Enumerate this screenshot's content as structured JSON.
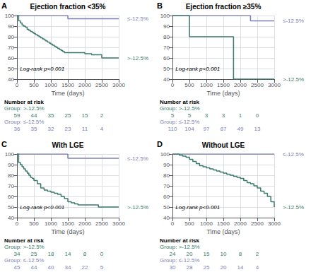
{
  "chart_data": [
    {
      "type": "step",
      "label": "A",
      "title": "Ejection fraction <35%",
      "xlabel": "Time (days)",
      "annotations": [
        "Log-rank p<0.001"
      ],
      "xlim": [
        0,
        3000
      ],
      "xticks": [
        0,
        500,
        1000,
        1500,
        2000,
        2500,
        3000
      ],
      "ylim": [
        40,
        100
      ],
      "yticks": [
        40,
        50,
        60,
        70,
        80,
        90,
        100
      ],
      "grid": true,
      "series": [
        {
          "name": "≤-12.5%",
          "color": "#7b7fb5",
          "x": [
            0,
            50,
            100,
            150,
            200,
            300,
            400,
            500,
            600,
            700,
            800,
            900,
            1000,
            1100,
            1200,
            1300,
            1400,
            1500,
            1600,
            1700,
            1800,
            1900,
            2000,
            2100,
            2200,
            2300,
            2400,
            2500,
            2600,
            2700,
            2800,
            2900,
            3000
          ],
          "values": [
            100,
            100,
            100,
            100,
            100,
            100,
            100,
            100,
            100,
            100,
            100,
            100,
            100,
            100,
            100,
            100,
            100,
            97,
            97,
            97,
            97,
            97,
            97,
            97,
            97,
            97,
            97,
            97,
            97,
            97,
            97,
            97,
            97
          ]
        },
        {
          "name": ">-12.5%",
          "color": "#3a7a6a",
          "x": [
            0,
            50,
            100,
            150,
            200,
            250,
            300,
            350,
            400,
            450,
            500,
            550,
            600,
            650,
            700,
            750,
            800,
            850,
            900,
            950,
            1000,
            1050,
            1100,
            1150,
            1200,
            1250,
            1300,
            1350,
            1400,
            1500,
            1600,
            1700,
            1800,
            1900,
            2000,
            2100,
            2200,
            2300,
            2400,
            2500,
            2600,
            2700,
            2800,
            2900,
            3000
          ],
          "values": [
            100,
            95,
            93,
            91,
            90,
            89,
            87,
            86,
            85,
            84,
            83,
            82,
            81,
            80,
            79,
            78,
            77,
            76,
            75,
            74,
            73,
            72,
            71,
            70,
            69,
            68,
            67,
            66,
            65,
            65,
            65,
            65,
            65,
            65,
            64,
            64,
            63,
            63,
            63,
            60,
            60,
            60,
            60,
            60,
            60
          ]
        }
      ],
      "risk_table": {
        "title": "Number at risk",
        "x": [
          0,
          500,
          1000,
          1500,
          2000,
          2500
        ],
        "rows": [
          {
            "name": "Group: >-12.5%",
            "color": "#3a7a6a",
            "values": [
              59,
              44,
              35,
              25,
              15,
              2
            ]
          },
          {
            "name": "Group: ≤-12.5%",
            "color": "#7b7fb5",
            "values": [
              36,
              35,
              32,
              23,
              11,
              4
            ]
          }
        ]
      }
    },
    {
      "type": "step",
      "label": "B",
      "title": "Ejection fraction ≥35%",
      "xlabel": "Time (days)",
      "annotations": [
        "Log-rank p<0.001"
      ],
      "xlim": [
        0,
        3000
      ],
      "xticks": [
        0,
        500,
        1000,
        1500,
        2000,
        2500,
        3000
      ],
      "ylim": [
        40,
        100
      ],
      "yticks": [
        40,
        50,
        60,
        70,
        80,
        90,
        100
      ],
      "grid": true,
      "series": [
        {
          "name": "≤-12.5%",
          "color": "#7b7fb5",
          "x": [
            0,
            100,
            200,
            300,
            400,
            500,
            600,
            700,
            800,
            900,
            1000,
            1100,
            1200,
            1300,
            1400,
            1500,
            1600,
            1700,
            1800,
            1900,
            2000,
            2100,
            2200,
            2300,
            2400,
            2500,
            2600,
            2700,
            2800,
            2900,
            3000
          ],
          "values": [
            100,
            100,
            100,
            100,
            100,
            100,
            100,
            100,
            100,
            100,
            100,
            100,
            100,
            100,
            100,
            100,
            100,
            100,
            100,
            100,
            100,
            100,
            100,
            95,
            95,
            95,
            95,
            95,
            95,
            95,
            95
          ]
        },
        {
          "name": ">-12.5%",
          "color": "#3a7a6a",
          "x": [
            0,
            100,
            200,
            300,
            400,
            500,
            600,
            700,
            800,
            900,
            1000,
            1100,
            1200,
            1300,
            1400,
            1500,
            1600,
            1700,
            1800,
            1900,
            2000,
            2100,
            2200,
            2300,
            2400,
            2500,
            2600,
            2700,
            2800,
            2900,
            3000
          ],
          "values": [
            100,
            100,
            100,
            100,
            100,
            80,
            80,
            80,
            80,
            80,
            80,
            80,
            80,
            80,
            80,
            80,
            80,
            80,
            40,
            40,
            40,
            40,
            40,
            40,
            40,
            40,
            40,
            40,
            40,
            40,
            40
          ]
        }
      ],
      "risk_table": {
        "title": "Number at risk",
        "x": [
          0,
          500,
          1000,
          1500,
          2000,
          2500
        ],
        "rows": [
          {
            "name": "Group: >-12.5%",
            "color": "#3a7a6a",
            "values": [
              5,
              5,
              3,
              3,
              1,
              0
            ]
          },
          {
            "name": "Group: ≤-12.5%",
            "color": "#7b7fb5",
            "values": [
              110,
              104,
              97,
              87,
              49,
              13
            ]
          }
        ]
      }
    },
    {
      "type": "step",
      "label": "C",
      "title": "With LGE",
      "xlabel": "Time (days)",
      "annotations": [
        "Log-rank p<0.001"
      ],
      "xlim": [
        0,
        3000
      ],
      "xticks": [
        0,
        500,
        1000,
        1500,
        2000,
        2500,
        3000
      ],
      "ylim": [
        40,
        100
      ],
      "yticks": [
        40,
        50,
        60,
        70,
        80,
        90,
        100
      ],
      "grid": true,
      "series": [
        {
          "name": "≤-12.5%",
          "color": "#7b7fb5",
          "x": [
            0,
            100,
            200,
            300,
            400,
            500,
            600,
            700,
            800,
            900,
            1000,
            1100,
            1200,
            1300,
            1400,
            1500,
            1600,
            1700,
            1800,
            1900,
            2000,
            2100,
            2200,
            2300,
            2400,
            2500,
            2600,
            2700,
            2800,
            2900,
            3000
          ],
          "values": [
            100,
            100,
            100,
            100,
            100,
            100,
            100,
            100,
            100,
            100,
            100,
            100,
            100,
            100,
            100,
            96,
            96,
            96,
            96,
            96,
            96,
            96,
            96,
            96,
            96,
            96,
            96,
            96,
            96,
            96,
            96
          ]
        },
        {
          "name": ">-12.5%",
          "color": "#3a7a6a",
          "x": [
            0,
            50,
            100,
            150,
            200,
            250,
            300,
            350,
            400,
            450,
            500,
            600,
            700,
            800,
            900,
            1000,
            1100,
            1200,
            1300,
            1400,
            1500,
            1600,
            1700,
            1800,
            1900,
            2000,
            2100,
            2200,
            2300,
            2400,
            2500,
            2600,
            2700,
            2800,
            2900,
            3000
          ],
          "values": [
            100,
            92,
            90,
            88,
            86,
            84,
            82,
            80,
            78,
            77,
            75,
            72,
            68,
            66,
            65,
            64,
            63,
            62,
            60,
            58,
            55,
            54,
            53,
            52,
            52,
            52,
            52,
            52,
            52,
            50,
            50,
            50,
            50,
            50,
            50,
            50
          ]
        }
      ],
      "risk_table": {
        "title": "Number at risk",
        "x": [
          0,
          500,
          1000,
          1500,
          2000,
          2500
        ],
        "rows": [
          {
            "name": "Group: >-12.5%",
            "color": "#3a7a6a",
            "values": [
              34,
              25,
              18,
              14,
              8,
              0
            ]
          },
          {
            "name": "Group: ≤-12.5%",
            "color": "#7b7fb5",
            "values": [
              45,
              44,
              40,
              34,
              22,
              5
            ]
          }
        ]
      }
    },
    {
      "type": "step",
      "label": "D",
      "title": "Without LGE",
      "xlabel": "Time (days)",
      "annotations": [
        "Log-rank p<0.001"
      ],
      "xlim": [
        0,
        3000
      ],
      "xticks": [
        0,
        500,
        1000,
        1500,
        2000,
        2500,
        3000
      ],
      "ylim": [
        40,
        100
      ],
      "yticks": [
        40,
        50,
        60,
        70,
        80,
        90,
        100
      ],
      "grid": true,
      "series": [
        {
          "name": "≤-12.5%",
          "color": "#7b7fb5",
          "x": [
            0,
            100,
            200,
            300,
            400,
            500,
            600,
            700,
            800,
            900,
            1000,
            1100,
            1200,
            1300,
            1400,
            1500,
            1600,
            1700,
            1800,
            1900,
            2000,
            2100,
            2200,
            2300,
            2400,
            2500,
            2600,
            2700,
            2800,
            2900,
            3000
          ],
          "values": [
            100,
            100,
            100,
            100,
            100,
            100,
            100,
            100,
            100,
            100,
            100,
            100,
            100,
            100,
            100,
            100,
            100,
            100,
            100,
            100,
            100,
            100,
            100,
            100,
            100,
            100,
            100,
            100,
            100,
            100,
            100
          ]
        },
        {
          "name": ">-12.5%",
          "color": "#3a7a6a",
          "x": [
            0,
            100,
            200,
            300,
            400,
            500,
            600,
            700,
            800,
            900,
            1000,
            1100,
            1200,
            1300,
            1400,
            1500,
            1600,
            1700,
            1800,
            1900,
            2000,
            2100,
            2200,
            2300,
            2400,
            2500,
            2600,
            2700,
            2800,
            2900,
            3000
          ],
          "values": [
            100,
            100,
            99,
            98,
            97,
            95,
            93,
            91,
            89,
            88,
            87,
            86,
            85,
            84,
            83,
            82,
            81,
            80,
            79,
            78,
            77,
            75,
            73,
            72,
            70,
            68,
            65,
            63,
            60,
            55,
            50
          ]
        }
      ],
      "risk_table": {
        "title": "Number at risk",
        "x": [
          0,
          500,
          1000,
          1500,
          2000,
          2500
        ],
        "rows": [
          {
            "name": "Group: >-12.5%",
            "color": "#3a7a6a",
            "values": [
              24,
              20,
              15,
              10,
              8,
              2
            ]
          },
          {
            "name": "Group: ≤-12.5%",
            "color": "#7b7fb5",
            "values": [
              30,
              28,
              25,
              20,
              14,
              4
            ]
          }
        ]
      }
    }
  ]
}
